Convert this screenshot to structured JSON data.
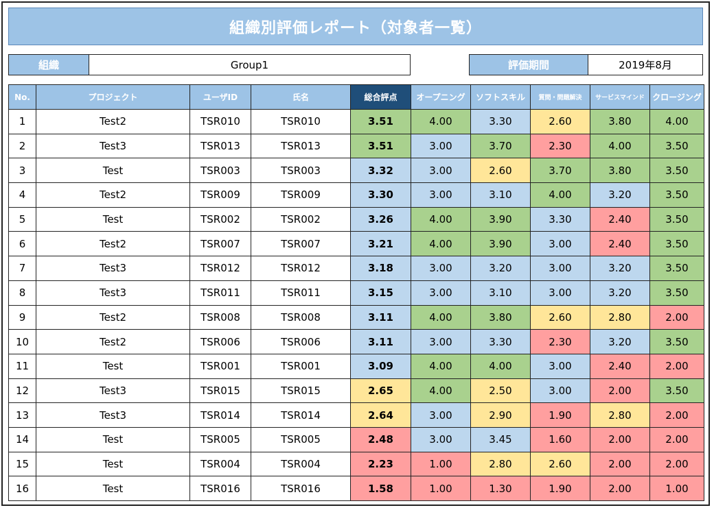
{
  "title": "組織別評価レポート（対象者一覧）",
  "info": {
    "org_label": "組織",
    "org_value": "Group1",
    "period_label": "評価期間",
    "period_value": "2019年8月"
  },
  "columns": {
    "no": "No.",
    "project": "プロジェクト",
    "user_id": "ユーザID",
    "name": "氏名",
    "total": "総合評点",
    "opening": "オープニング",
    "soft_skill": "ソフトスキル",
    "question": "質問・問題解決",
    "service": "サービスマインド",
    "closing": "クロージング"
  },
  "colors": {
    "header": "#9dc3e6",
    "total_header": "#1f4e79",
    "green": "#a9d18e",
    "blue": "#bdd7ee",
    "yellow": "#ffe699",
    "red": "#ff9f9f"
  },
  "rows": [
    {
      "no": "1",
      "project": "Test2",
      "user_id": "TSR010",
      "name": "TSR010",
      "total": "3.51",
      "total_c": "green",
      "scores": [
        [
          "4.00",
          "green"
        ],
        [
          "3.30",
          "blue"
        ],
        [
          "2.60",
          "yellow"
        ],
        [
          "3.80",
          "green"
        ],
        [
          "4.00",
          "green"
        ]
      ]
    },
    {
      "no": "2",
      "project": "Test3",
      "user_id": "TSR013",
      "name": "TSR013",
      "total": "3.51",
      "total_c": "green",
      "scores": [
        [
          "3.00",
          "blue"
        ],
        [
          "3.70",
          "green"
        ],
        [
          "2.30",
          "red"
        ],
        [
          "4.00",
          "green"
        ],
        [
          "3.50",
          "green"
        ]
      ]
    },
    {
      "no": "3",
      "project": "Test",
      "user_id": "TSR003",
      "name": "TSR003",
      "total": "3.32",
      "total_c": "blue",
      "scores": [
        [
          "3.00",
          "blue"
        ],
        [
          "2.60",
          "yellow"
        ],
        [
          "3.70",
          "green"
        ],
        [
          "3.80",
          "green"
        ],
        [
          "3.50",
          "green"
        ]
      ]
    },
    {
      "no": "4",
      "project": "Test2",
      "user_id": "TSR009",
      "name": "TSR009",
      "total": "3.30",
      "total_c": "blue",
      "scores": [
        [
          "3.00",
          "blue"
        ],
        [
          "3.10",
          "blue"
        ],
        [
          "4.00",
          "green"
        ],
        [
          "3.20",
          "blue"
        ],
        [
          "3.50",
          "green"
        ]
      ]
    },
    {
      "no": "5",
      "project": "Test",
      "user_id": "TSR002",
      "name": "TSR002",
      "total": "3.26",
      "total_c": "blue",
      "scores": [
        [
          "4.00",
          "green"
        ],
        [
          "3.90",
          "green"
        ],
        [
          "3.30",
          "blue"
        ],
        [
          "2.40",
          "red"
        ],
        [
          "3.50",
          "green"
        ]
      ]
    },
    {
      "no": "6",
      "project": "Test2",
      "user_id": "TSR007",
      "name": "TSR007",
      "total": "3.21",
      "total_c": "blue",
      "scores": [
        [
          "4.00",
          "green"
        ],
        [
          "3.90",
          "green"
        ],
        [
          "3.00",
          "blue"
        ],
        [
          "2.40",
          "red"
        ],
        [
          "3.50",
          "green"
        ]
      ]
    },
    {
      "no": "7",
      "project": "Test3",
      "user_id": "TSR012",
      "name": "TSR012",
      "total": "3.18",
      "total_c": "blue",
      "scores": [
        [
          "3.00",
          "blue"
        ],
        [
          "3.20",
          "blue"
        ],
        [
          "3.00",
          "blue"
        ],
        [
          "3.20",
          "blue"
        ],
        [
          "3.50",
          "green"
        ]
      ]
    },
    {
      "no": "8",
      "project": "Test3",
      "user_id": "TSR011",
      "name": "TSR011",
      "total": "3.15",
      "total_c": "blue",
      "scores": [
        [
          "3.00",
          "blue"
        ],
        [
          "3.10",
          "blue"
        ],
        [
          "3.00",
          "blue"
        ],
        [
          "3.20",
          "blue"
        ],
        [
          "3.50",
          "green"
        ]
      ]
    },
    {
      "no": "9",
      "project": "Test2",
      "user_id": "TSR008",
      "name": "TSR008",
      "total": "3.11",
      "total_c": "blue",
      "scores": [
        [
          "4.00",
          "green"
        ],
        [
          "3.80",
          "green"
        ],
        [
          "2.60",
          "yellow"
        ],
        [
          "2.80",
          "yellow"
        ],
        [
          "2.00",
          "red"
        ]
      ]
    },
    {
      "no": "10",
      "project": "Test2",
      "user_id": "TSR006",
      "name": "TSR006",
      "total": "3.11",
      "total_c": "blue",
      "scores": [
        [
          "3.00",
          "blue"
        ],
        [
          "3.30",
          "blue"
        ],
        [
          "2.30",
          "red"
        ],
        [
          "3.20",
          "blue"
        ],
        [
          "3.50",
          "green"
        ]
      ]
    },
    {
      "no": "11",
      "project": "Test",
      "user_id": "TSR001",
      "name": "TSR001",
      "total": "3.09",
      "total_c": "blue",
      "scores": [
        [
          "4.00",
          "green"
        ],
        [
          "4.00",
          "green"
        ],
        [
          "3.00",
          "blue"
        ],
        [
          "2.40",
          "red"
        ],
        [
          "2.00",
          "red"
        ]
      ]
    },
    {
      "no": "12",
      "project": "Test3",
      "user_id": "TSR015",
      "name": "TSR015",
      "total": "2.65",
      "total_c": "yellow",
      "scores": [
        [
          "4.00",
          "green"
        ],
        [
          "2.50",
          "yellow"
        ],
        [
          "3.00",
          "blue"
        ],
        [
          "2.00",
          "red"
        ],
        [
          "3.50",
          "green"
        ]
      ]
    },
    {
      "no": "13",
      "project": "Test3",
      "user_id": "TSR014",
      "name": "TSR014",
      "total": "2.64",
      "total_c": "yellow",
      "scores": [
        [
          "3.00",
          "blue"
        ],
        [
          "2.90",
          "yellow"
        ],
        [
          "1.90",
          "red"
        ],
        [
          "2.80",
          "yellow"
        ],
        [
          "2.00",
          "red"
        ]
      ]
    },
    {
      "no": "14",
      "project": "Test",
      "user_id": "TSR005",
      "name": "TSR005",
      "total": "2.48",
      "total_c": "red",
      "scores": [
        [
          "3.00",
          "blue"
        ],
        [
          "3.45",
          "blue"
        ],
        [
          "1.60",
          "red"
        ],
        [
          "2.00",
          "red"
        ],
        [
          "2.00",
          "red"
        ]
      ]
    },
    {
      "no": "15",
      "project": "Test",
      "user_id": "TSR004",
      "name": "TSR004",
      "total": "2.23",
      "total_c": "red",
      "scores": [
        [
          "1.00",
          "red"
        ],
        [
          "2.80",
          "yellow"
        ],
        [
          "2.60",
          "yellow"
        ],
        [
          "2.00",
          "red"
        ],
        [
          "2.00",
          "red"
        ]
      ]
    },
    {
      "no": "16",
      "project": "Test",
      "user_id": "TSR016",
      "name": "TSR016",
      "total": "1.58",
      "total_c": "red",
      "scores": [
        [
          "1.00",
          "red"
        ],
        [
          "1.30",
          "red"
        ],
        [
          "1.90",
          "red"
        ],
        [
          "2.00",
          "red"
        ],
        [
          "1.00",
          "red"
        ]
      ]
    }
  ]
}
